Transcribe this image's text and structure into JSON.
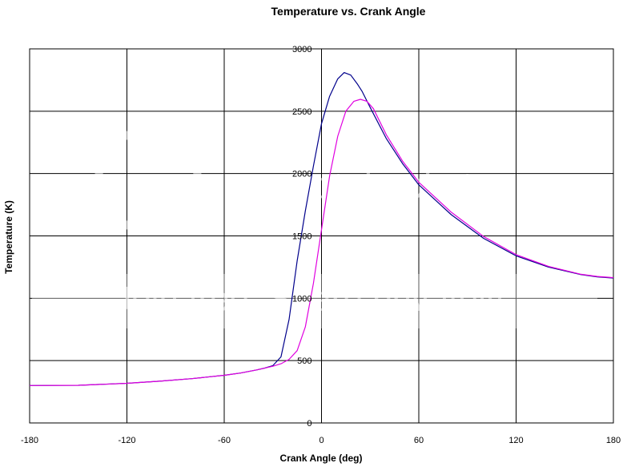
{
  "chart_data": {
    "type": "line",
    "title": "Temperature vs. Crank Angle",
    "xlabel": "Crank Angle (deg)",
    "ylabel": "Temperature (K)",
    "xlim": [
      -180,
      180
    ],
    "ylim": [
      0,
      3000
    ],
    "x_ticks": [
      -180,
      -120,
      -60,
      0,
      60,
      120,
      180
    ],
    "y_ticks": [
      0,
      500,
      1000,
      1500,
      2000,
      2500,
      3000
    ],
    "x_tick_labels": [
      "-180",
      "-120",
      "-60",
      "0",
      "60",
      "120",
      "180"
    ],
    "y_tick_labels": [
      "0",
      "500",
      "1000",
      "1500",
      "2000",
      "2500",
      "3000"
    ],
    "grid": true,
    "legend": "none",
    "series": [
      {
        "color": "#00008b",
        "x": [
          -180,
          -150,
          -120,
          -100,
          -80,
          -60,
          -50,
          -40,
          -35,
          -30,
          -25,
          -20,
          -15,
          -10,
          -5,
          0,
          5,
          10,
          14,
          18,
          22,
          25,
          30,
          40,
          50,
          60,
          80,
          100,
          120,
          140,
          160,
          170,
          180
        ],
        "y": [
          300,
          302,
          318,
          335,
          355,
          382,
          400,
          425,
          440,
          460,
          530,
          830,
          1300,
          1700,
          2060,
          2400,
          2620,
          2760,
          2810,
          2790,
          2720,
          2660,
          2530,
          2280,
          2080,
          1910,
          1670,
          1480,
          1340,
          1250,
          1190,
          1172,
          1162
        ]
      },
      {
        "color": "#e000e0",
        "x": [
          -180,
          -150,
          -120,
          -100,
          -80,
          -60,
          -50,
          -40,
          -30,
          -25,
          -20,
          -15,
          -10,
          -5,
          0,
          5,
          10,
          15,
          20,
          24,
          28,
          32,
          40,
          50,
          60,
          80,
          100,
          120,
          140,
          160,
          170,
          180
        ],
        "y": [
          300,
          302,
          318,
          335,
          355,
          382,
          400,
          425,
          455,
          475,
          510,
          580,
          770,
          1120,
          1550,
          1980,
          2300,
          2500,
          2580,
          2595,
          2580,
          2520,
          2310,
          2100,
          1930,
          1690,
          1495,
          1350,
          1255,
          1192,
          1175,
          1165
        ]
      }
    ],
    "watermark": [
      "photobucket",
      "Join free. Share privately."
    ]
  }
}
